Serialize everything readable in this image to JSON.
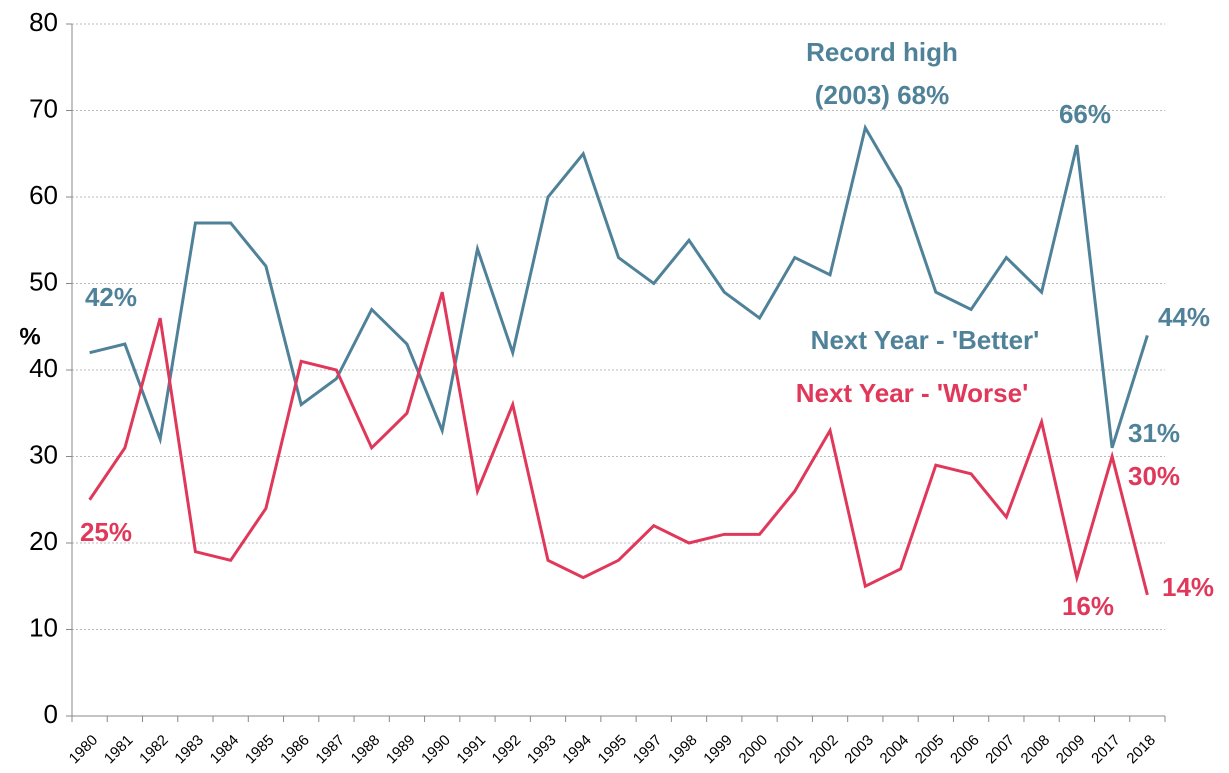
{
  "chart_data": {
    "type": "line",
    "categories": [
      "1980",
      "1981",
      "1982",
      "1983",
      "1984",
      "1985",
      "1986",
      "1987",
      "1988",
      "1989",
      "1990",
      "1991",
      "1992",
      "1993",
      "1994",
      "1995",
      "1997",
      "1998",
      "1999",
      "2000",
      "2001",
      "2002",
      "2003",
      "2004",
      "2005",
      "2006",
      "2007",
      "2008",
      "2009",
      "2017",
      "2018"
    ],
    "series": [
      {
        "name": "Next Year - 'Better'",
        "color": "#4f8299",
        "values": [
          42,
          43,
          32,
          57,
          57,
          52,
          36,
          39,
          47,
          43,
          33,
          54,
          42,
          60,
          65,
          53,
          50,
          55,
          49,
          46,
          53,
          51,
          68,
          61,
          49,
          47,
          53,
          49,
          66,
          31,
          44
        ]
      },
      {
        "name": "Next Year - 'Worse'",
        "color": "#e0385a",
        "values": [
          25,
          31,
          46,
          19,
          18,
          24,
          41,
          40,
          31,
          35,
          49,
          26,
          36,
          18,
          16,
          18,
          22,
          20,
          21,
          21,
          26,
          33,
          15,
          17,
          29,
          28,
          23,
          34,
          16,
          30,
          14
        ]
      }
    ],
    "ylabel": "%",
    "ylim": [
      0,
      80
    ],
    "yticks": [
      0,
      10,
      20,
      30,
      40,
      50,
      60,
      70,
      80
    ],
    "grid": true,
    "annotations": [
      "42%",
      "25%",
      "Record high",
      "(2003) 68%",
      "66%",
      "44%",
      "31%",
      "30%",
      "16%",
      "14%"
    ]
  }
}
